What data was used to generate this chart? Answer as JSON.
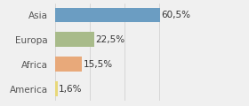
{
  "categories": [
    "Asia",
    "Europa",
    "Africa",
    "America"
  ],
  "values": [
    60.5,
    22.5,
    15.5,
    1.6
  ],
  "labels": [
    "60,5%",
    "22,5%",
    "15,5%",
    "1,6%"
  ],
  "bar_colors": [
    "#6b9dc2",
    "#a8bb8a",
    "#e8a97a",
    "#e8d87a"
  ],
  "background_color": "#f0f0f0",
  "xlim": [
    0,
    80
  ],
  "figsize": [
    2.8,
    1.2
  ],
  "dpi": 100,
  "label_fontsize": 7.5,
  "ytick_fontsize": 7.5
}
